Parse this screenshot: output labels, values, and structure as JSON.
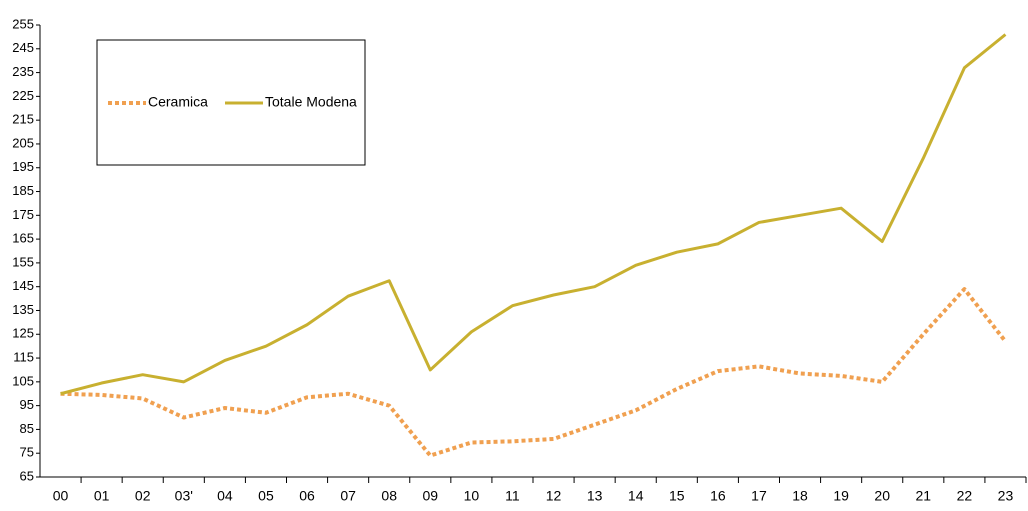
{
  "chart_data": {
    "type": "line",
    "categories": [
      "00",
      "01",
      "02",
      "03'",
      "04",
      "05",
      "06",
      "07",
      "08",
      "09",
      "10",
      "11",
      "12",
      "13",
      "14",
      "15",
      "16",
      "17",
      "18",
      "19",
      "20",
      "21",
      "22",
      "23"
    ],
    "series": [
      {
        "name": "Ceramica",
        "color": "#f0a050",
        "dashed": true,
        "values": [
          100,
          99.5,
          98,
          90,
          94,
          92,
          98.5,
          100,
          95,
          74,
          79.5,
          80,
          81,
          87,
          93,
          102,
          109.5,
          111.5,
          108.5,
          107.5,
          105,
          125,
          144,
          122
        ]
      },
      {
        "name": "Totale Modena",
        "color": "#c8b030",
        "dashed": false,
        "values": [
          100,
          104.5,
          108,
          105,
          114,
          120,
          129,
          141,
          147.5,
          110,
          126,
          137,
          141.5,
          145,
          154,
          159.5,
          163,
          172,
          175,
          178,
          164,
          199,
          237,
          251
        ]
      }
    ],
    "ylim": [
      65,
      255
    ],
    "yticks": [
      65,
      75,
      85,
      95,
      105,
      115,
      125,
      135,
      145,
      155,
      165,
      175,
      185,
      195,
      205,
      215,
      225,
      235,
      245,
      255
    ],
    "grid": false,
    "legend": "upper left"
  }
}
